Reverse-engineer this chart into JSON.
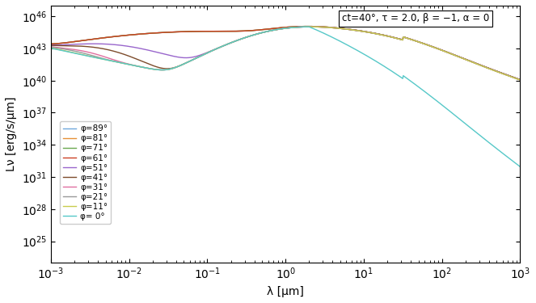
{
  "title": "ct=40°, τ = 2.0, β = −1, α = 0",
  "xlabel": "λ [μm]",
  "ylabel": "Lν [erg/s/μm]",
  "xlim": [
    0.001,
    1000.0
  ],
  "ylim": [
    1e+23,
    1e+47
  ],
  "legend_entries": [
    "φ=89°",
    "φ=81°",
    "φ=71°",
    "φ=61°",
    "φ=51°",
    "φ=41°",
    "φ=31°",
    "φ=21°",
    "φ=11°",
    "φ= 0°"
  ],
  "colors": [
    "#6fa8dc",
    "#e69138",
    "#6aa84f",
    "#cc4125",
    "#9966cc",
    "#7d4c2c",
    "#e06fa0",
    "#999999",
    "#c8cc4d",
    "#56c8c8"
  ]
}
